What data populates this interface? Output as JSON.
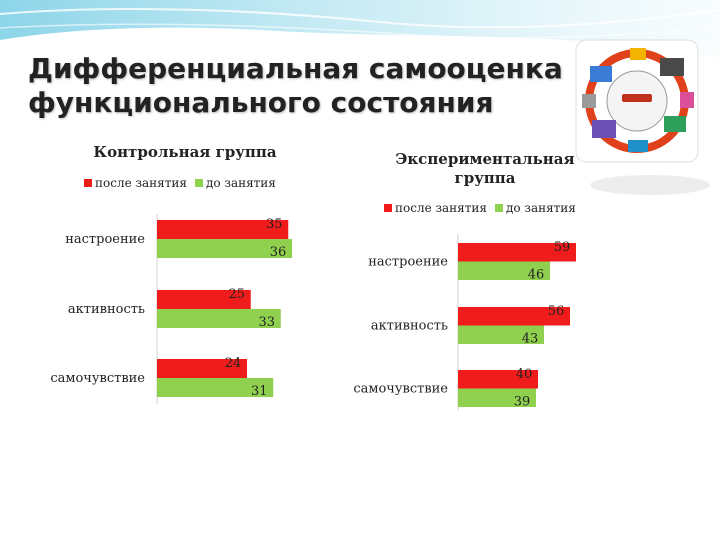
{
  "slide": {
    "title_line1": "Дифференциальная самооценка",
    "title_line2": "функционального  состояния"
  },
  "colors": {
    "after": "#f01c1c",
    "before": "#8fd14f"
  },
  "logo": {
    "icon": "computer-collage-logo-icon"
  },
  "chart_data": [
    {
      "type": "bar",
      "orientation": "horizontal",
      "title": "Контрольная группа",
      "categories": [
        "настроение",
        "активность",
        "самочувствие"
      ],
      "series": [
        {
          "name": "после занятия",
          "values": [
            35,
            25,
            24
          ]
        },
        {
          "name": "до занятия",
          "values": [
            36,
            33,
            31
          ]
        }
      ],
      "legend": "top",
      "grid": false
    },
    {
      "type": "bar",
      "orientation": "horizontal",
      "title": "Экспериментальная группа",
      "title_line1": "Экспериментальная",
      "title_line2": "группа",
      "categories": [
        "настроение",
        "активность",
        "самочувствие"
      ],
      "series": [
        {
          "name": "после занятия",
          "values": [
            59,
            56,
            40
          ]
        },
        {
          "name": "до занятия",
          "values": [
            46,
            43,
            39
          ]
        }
      ],
      "legend": "top",
      "grid": false
    }
  ]
}
